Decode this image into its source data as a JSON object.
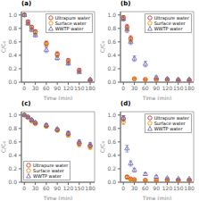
{
  "chart_data": [
    {
      "type": "scatter",
      "title": "(a)",
      "xlabel": "Time (min)",
      "ylabel": "C/C₀",
      "x": [
        0,
        10,
        20,
        30,
        60,
        90,
        120,
        150,
        180
      ],
      "xlim": [
        -8,
        192
      ],
      "xticks": [
        0,
        30,
        60,
        90,
        120,
        150,
        180
      ],
      "ylim": [
        0.0,
        1.05
      ],
      "yticks": [
        {
          "value": 0.0,
          "label": "0.0"
        },
        0.2,
        0.4,
        0.6,
        0.8,
        {
          "value": 1.0,
          "label": "1.0"
        }
      ],
      "legend": "upper right",
      "series": [
        {
          "name": "Ultrapure water",
          "color": "#cc2222",
          "marker": "circle",
          "values": [
            1.0,
            0.9,
            0.82,
            0.75,
            0.58,
            0.42,
            0.32,
            0.18,
            0.03
          ],
          "errors": [
            0.02,
            0.02,
            0.02,
            0.03,
            0.03,
            0.03,
            0.03,
            0.02,
            0.01
          ]
        },
        {
          "name": "Surface water",
          "color": "#dd8800",
          "marker": "circle",
          "values": [
            1.0,
            0.88,
            0.8,
            0.73,
            0.56,
            0.4,
            0.3,
            0.16,
            0.03
          ],
          "errors": [
            0.02,
            0.02,
            0.02,
            0.03,
            0.03,
            0.03,
            0.03,
            0.02,
            0.01
          ]
        },
        {
          "name": "WWTP water",
          "color": "#6666bb",
          "marker": "triangle",
          "values": [
            1.0,
            0.87,
            0.78,
            0.7,
            0.48,
            0.36,
            0.28,
            0.15,
            0.04
          ],
          "errors": [
            0.02,
            0.02,
            0.03,
            0.03,
            0.04,
            0.03,
            0.03,
            0.02,
            0.01
          ]
        }
      ]
    },
    {
      "type": "scatter",
      "title": "(b)",
      "xlabel": "Time (min)",
      "ylabel": "C/C₀",
      "x": [
        0,
        10,
        20,
        30,
        60,
        90,
        120,
        150,
        180
      ],
      "xlim": [
        -8,
        192
      ],
      "xticks": [
        0,
        30,
        60,
        90,
        120,
        150,
        180
      ],
      "ylim": [
        0.0,
        1.05
      ],
      "yticks": [
        {
          "value": 0.0,
          "label": "0.0"
        },
        0.2,
        0.4,
        0.6,
        0.8,
        {
          "value": 1.0,
          "label": "1.0"
        }
      ],
      "legend": "upper right",
      "series": [
        {
          "name": "Ultrapure water",
          "color": "#cc2222",
          "marker": "circle",
          "values": [
            0.96,
            0.82,
            0.65,
            0.05,
            0.04,
            0.04,
            0.04,
            0.03,
            0.03
          ],
          "errors": [
            0.03,
            0.04,
            0.04,
            0.01,
            0.01,
            0.01,
            0.01,
            0.01,
            0.01
          ]
        },
        {
          "name": "Surface water",
          "color": "#dd8800",
          "marker": "circle",
          "values": [
            0.95,
            0.8,
            0.63,
            0.05,
            0.04,
            0.04,
            0.04,
            0.03,
            0.03
          ],
          "errors": [
            0.03,
            0.04,
            0.04,
            0.01,
            0.01,
            0.01,
            0.01,
            0.01,
            0.01
          ]
        },
        {
          "name": "WWTP water",
          "color": "#6666bb",
          "marker": "triangle",
          "values": [
            0.94,
            0.78,
            0.6,
            0.35,
            0.27,
            0.07,
            0.05,
            0.04,
            0.04
          ],
          "errors": [
            0.03,
            0.04,
            0.04,
            0.04,
            0.04,
            0.02,
            0.01,
            0.01,
            0.01
          ]
        }
      ]
    },
    {
      "type": "scatter",
      "title": "(c)",
      "xlabel": "Time (min)",
      "ylabel": "C/C₀",
      "x": [
        0,
        10,
        20,
        30,
        60,
        90,
        120,
        150,
        180
      ],
      "xlim": [
        -8,
        192
      ],
      "xticks": [
        0,
        30,
        60,
        90,
        120,
        150,
        180
      ],
      "ylim": [
        0.0,
        1.05
      ],
      "yticks": [
        {
          "value": 0.0,
          "label": "0.0"
        },
        0.2,
        0.4,
        0.6,
        0.8,
        {
          "value": 1.0,
          "label": "1.0"
        }
      ],
      "legend": "lower left",
      "series": [
        {
          "name": "Ultrapure water",
          "color": "#cc2222",
          "marker": "circle",
          "values": [
            1.0,
            0.97,
            0.92,
            0.88,
            0.84,
            0.78,
            0.72,
            0.58,
            0.54
          ],
          "errors": [
            0.01,
            0.01,
            0.01,
            0.01,
            0.02,
            0.02,
            0.03,
            0.03,
            0.03
          ]
        },
        {
          "name": "Surface water",
          "color": "#dd8800",
          "marker": "circle",
          "values": [
            1.0,
            0.96,
            0.91,
            0.87,
            0.83,
            0.77,
            0.7,
            0.56,
            0.52
          ],
          "errors": [
            0.01,
            0.01,
            0.01,
            0.01,
            0.02,
            0.02,
            0.03,
            0.03,
            0.03
          ]
        },
        {
          "name": "WWTP water",
          "color": "#6666bb",
          "marker": "triangle",
          "values": [
            1.0,
            0.97,
            0.93,
            0.89,
            0.85,
            0.79,
            0.73,
            0.6,
            0.56
          ],
          "errors": [
            0.01,
            0.01,
            0.01,
            0.01,
            0.02,
            0.02,
            0.03,
            0.03,
            0.03
          ]
        }
      ]
    },
    {
      "type": "scatter",
      "title": "(d)",
      "xlabel": "Time (min)",
      "ylabel": "C/C₀",
      "x": [
        0,
        10,
        20,
        30,
        60,
        90,
        120,
        150,
        180
      ],
      "xlim": [
        -8,
        192
      ],
      "xticks": [
        0,
        30,
        60,
        90,
        120,
        150,
        180
      ],
      "ylim": [
        0.0,
        1.05
      ],
      "yticks": [
        {
          "value": 0.0,
          "label": "0.0"
        },
        0.2,
        0.4,
        0.6,
        0.8,
        {
          "value": 1.0,
          "label": "1.0"
        }
      ],
      "legend": "upper right",
      "series": [
        {
          "name": "Ultrapure water",
          "color": "#cc2222",
          "marker": "circle",
          "values": [
            0.95,
            0.08,
            0.05,
            0.04,
            0.03,
            0.03,
            0.03,
            0.03,
            0.03
          ],
          "errors": [
            0.04,
            0.02,
            0.01,
            0.01,
            0.01,
            0.01,
            0.01,
            0.01,
            0.01
          ]
        },
        {
          "name": "Surface water",
          "color": "#dd8800",
          "marker": "circle",
          "values": [
            0.9,
            0.07,
            0.04,
            0.03,
            0.03,
            0.03,
            0.03,
            0.03,
            0.03
          ],
          "errors": [
            0.04,
            0.02,
            0.01,
            0.01,
            0.01,
            0.01,
            0.01,
            0.01,
            0.01
          ]
        },
        {
          "name": "WWTP water",
          "color": "#6666bb",
          "marker": "triangle",
          "values": [
            0.95,
            0.5,
            0.28,
            0.18,
            0.12,
            0.08,
            0.06,
            0.05,
            0.05
          ],
          "errors": [
            0.04,
            0.05,
            0.04,
            0.03,
            0.02,
            0.02,
            0.01,
            0.01,
            0.01
          ]
        }
      ]
    }
  ]
}
